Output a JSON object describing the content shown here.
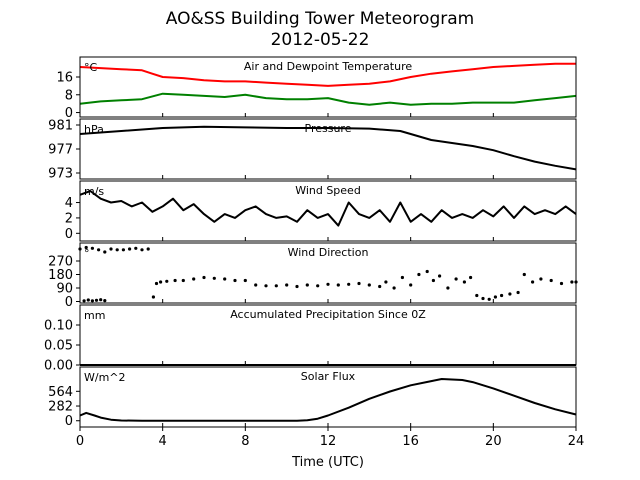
{
  "chart_data": {
    "type": "line",
    "title": "AO&SS Building Tower Meteorogram",
    "subtitle": "2012-05-22",
    "xlabel": "Time (UTC)",
    "xlim": [
      0,
      24
    ],
    "xticks": [
      "0",
      "4",
      "8",
      "12",
      "16",
      "20",
      "24"
    ],
    "panels": [
      {
        "title": "Air and Dewpoint Temperature",
        "unit": "°C",
        "ylim": [
          -2,
          25
        ],
        "yticks": [
          "0",
          "8",
          "16"
        ],
        "series": [
          {
            "color": "#ff0000",
            "x": [
              0,
              1,
              2,
              3,
              3.5,
              4,
              5,
              6,
              7,
              8,
              9,
              10,
              11,
              12,
              13,
              14,
              15,
              16,
              17,
              18,
              19,
              20,
              21,
              22,
              23,
              24
            ],
            "y": [
              20.5,
              20,
              19.5,
              19,
              17.5,
              16,
              15.5,
              14.5,
              14,
              14,
              13.5,
              13,
              12.5,
              12,
              12.5,
              13,
              14,
              16,
              17.5,
              18.5,
              19.5,
              20.5,
              21,
              21.5,
              22,
              22
            ]
          },
          {
            "color": "#008000",
            "x": [
              0,
              1,
              2,
              3,
              4,
              5,
              6,
              7,
              8,
              9,
              10,
              11,
              12,
              13,
              14,
              15,
              16,
              17,
              18,
              19,
              20,
              21,
              22,
              23,
              24
            ],
            "y": [
              4,
              5,
              5.5,
              6,
              8.5,
              8,
              7.5,
              7,
              8,
              6.5,
              6,
              6,
              6.5,
              4.5,
              3.5,
              4.5,
              3.5,
              4,
              4,
              4.5,
              4.5,
              4.5,
              5.5,
              6.5,
              7.5
            ]
          }
        ]
      },
      {
        "title": "Pressure",
        "unit": "hPa",
        "ylim": [
          972,
          982
        ],
        "yticks": [
          "973",
          "977",
          "981"
        ],
        "series": [
          {
            "color": "#000000",
            "x": [
              0,
              2,
              4,
              6,
              8,
              10,
              12,
              14,
              15.5,
              16,
              17,
              18,
              19,
              20,
              21,
              22,
              23,
              24
            ],
            "y": [
              979.5,
              980,
              980.5,
              980.7,
              980.6,
              980.5,
              980.5,
              980.4,
              980,
              979.5,
              978.5,
              978,
              977.5,
              976.8,
              975.8,
              974.9,
              974.2,
              973.6
            ]
          }
        ]
      },
      {
        "title": "Wind Speed",
        "unit": "m/s",
        "ylim": [
          -1,
          6.8
        ],
        "yticks": [
          "0",
          "2",
          "4"
        ],
        "series": [
          {
            "color": "#000000",
            "x": [
              0,
              0.5,
              1,
              1.5,
              2,
              2.5,
              3,
              3.5,
              4,
              4.5,
              5,
              5.5,
              6,
              6.5,
              7,
              7.5,
              8,
              8.5,
              9,
              9.5,
              10,
              10.5,
              11,
              11.5,
              12,
              12.5,
              13,
              13.5,
              14,
              14.5,
              15,
              15.5,
              16,
              16.5,
              17,
              17.5,
              18,
              18.5,
              19,
              19.5,
              20,
              20.5,
              21,
              21.5,
              22,
              22.5,
              23,
              23.5,
              24
            ],
            "y": [
              5,
              5.5,
              4.5,
              4,
              4.2,
              3.5,
              4,
              2.8,
              3.5,
              4.5,
              3,
              3.8,
              2.5,
              1.5,
              2.5,
              2,
              3,
              3.5,
              2.5,
              2,
              2.2,
              1.5,
              3,
              2,
              2.5,
              1,
              4,
              2.5,
              2,
              3,
              1.5,
              4,
              1.5,
              2.5,
              1.5,
              3,
              2,
              2.5,
              2,
              3,
              2.2,
              3.5,
              2,
              3.5,
              2.5,
              3,
              2.5,
              3.5,
              2.5
            ]
          }
        ]
      },
      {
        "title": "Wind Direction",
        "unit": "°",
        "ylim": [
          -10,
          390
        ],
        "yticks": [
          "0",
          "90",
          "180",
          "270"
        ],
        "series": [
          {
            "color": "#000000",
            "markers": true,
            "x": [
              0,
              0.3,
              0.6,
              0.9,
              1.2,
              1.5,
              1.8,
              2.1,
              2.4,
              2.7,
              3.0,
              3.3,
              3.55,
              3.7,
              3.9,
              4.2,
              4.6,
              5.0,
              5.5,
              6.0,
              6.5,
              7.0,
              7.5,
              8.0,
              8.5,
              9.0,
              9.5,
              10.0,
              10.5,
              11.0,
              11.5,
              12.0,
              12.5,
              13.0,
              13.5,
              14.0,
              14.5,
              14.8,
              15.2,
              15.6,
              16.0,
              16.4,
              16.8,
              17.1,
              17.4,
              17.8,
              18.2,
              18.6,
              18.9,
              19.2,
              19.5,
              19.8,
              20.1,
              20.4,
              20.8,
              21.2,
              21.5,
              21.9,
              22.3,
              22.8,
              23.3,
              23.8,
              24.0
            ],
            "y": [
              350,
              360,
              355,
              345,
              330,
              350,
              345,
              345,
              350,
              355,
              345,
              350,
              30,
              120,
              130,
              135,
              140,
              140,
              150,
              160,
              155,
              150,
              140,
              140,
              110,
              105,
              105,
              110,
              100,
              110,
              105,
              115,
              110,
              115,
              120,
              110,
              100,
              130,
              90,
              160,
              110,
              180,
              200,
              140,
              170,
              90,
              150,
              130,
              160,
              40,
              20,
              15,
              30,
              40,
              50,
              60,
              180,
              130,
              150,
              140,
              120,
              130,
              130
            ]
          },
          {
            "color": "#000000",
            "markers": true,
            "x": [
              0.2,
              0.4,
              0.6,
              0.8,
              1.0,
              1.2
            ],
            "y": [
              5,
              10,
              5,
              8,
              12,
              6
            ]
          }
        ]
      },
      {
        "title": "Accumulated Precipitation Since 0Z",
        "unit": "mm",
        "ylim": [
          0,
          0.15
        ],
        "yticks": [
          "0.00",
          "0.05",
          "0.10"
        ],
        "series": [
          {
            "color": "#000000",
            "x": [
              0,
              24
            ],
            "y": [
              0,
              0
            ]
          }
        ]
      },
      {
        "title": "Solar Flux",
        "unit": "W/m^2",
        "ylim": [
          -120,
          1030
        ],
        "yticks": [
          "0",
          "282",
          "564"
        ],
        "series": [
          {
            "color": "#000000",
            "x": [
              0,
              0.3,
              0.7,
              1,
              1.5,
              2,
              3,
              4,
              5,
              6,
              7,
              8,
              9,
              10,
              10.5,
              11,
              11.5,
              12,
              13,
              14,
              15,
              16,
              17,
              17.5,
              18,
              18.5,
              19,
              20,
              21,
              22,
              23,
              24
            ],
            "y": [
              100,
              150,
              100,
              60,
              20,
              5,
              0,
              0,
              0,
              0,
              0,
              0,
              0,
              0,
              0,
              10,
              40,
              100,
              250,
              420,
              560,
              680,
              760,
              800,
              790,
              780,
              740,
              620,
              480,
              340,
              220,
              120
            ]
          }
        ]
      }
    ]
  }
}
